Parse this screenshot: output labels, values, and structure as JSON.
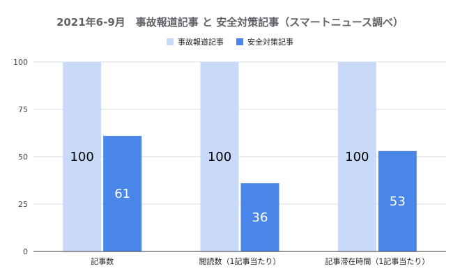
{
  "chart_data": {
    "type": "bar",
    "title": "2021年6-9月　事故報道記事 と 安全対策記事（スマートニュース調べ）",
    "categories": [
      "記事数",
      "閲読数（1記事当たり）",
      "記事滞在時間（1記事当たり）"
    ],
    "series": [
      {
        "name": "事故報道記事",
        "values": [
          100,
          100,
          100
        ],
        "color": "#c9daf8",
        "label_color": "#000000"
      },
      {
        "name": "安全対策記事",
        "values": [
          61,
          36,
          53
        ],
        "color": "#4a86e8",
        "label_color": "#ffffff"
      }
    ],
    "ylim": [
      0,
      100
    ],
    "yticks": [
      0,
      25,
      50,
      75,
      100
    ],
    "xlabel": "",
    "ylabel": "",
    "grid": true,
    "legend_position": "top-center",
    "data_labels": true
  }
}
